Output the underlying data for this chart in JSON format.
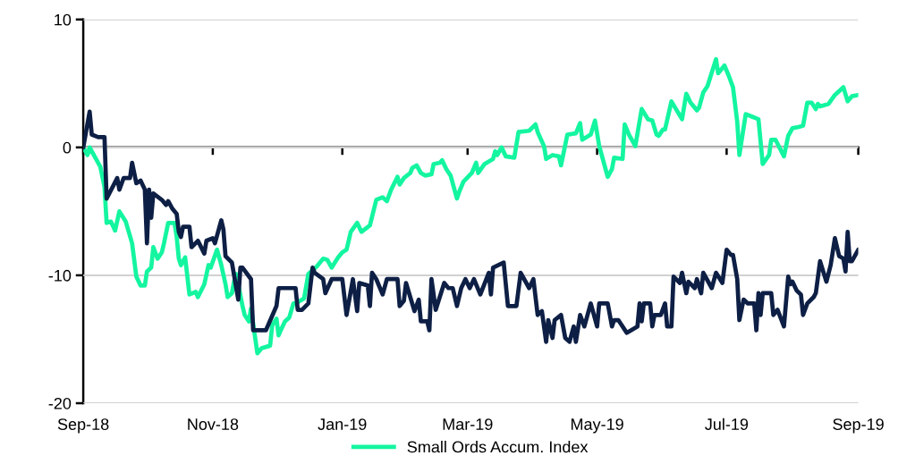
{
  "chart_data": {
    "type": "line",
    "xlim": [
      "2018-09-01",
      "2019-09-01"
    ],
    "ylim": [
      -20,
      10
    ],
    "yticks": [
      -20,
      -10,
      0,
      10
    ],
    "xticks": [
      {
        "value": "2018-09-01",
        "label": "Sep-18"
      },
      {
        "value": "2018-11-01",
        "label": "Nov-18"
      },
      {
        "value": "2019-01-01",
        "label": "Jan-19"
      },
      {
        "value": "2019-03-01",
        "label": "Mar-19"
      },
      {
        "value": "2019-05-01",
        "label": "May-19"
      },
      {
        "value": "2019-07-01",
        "label": "Jul-19"
      },
      {
        "value": "2019-09-01",
        "label": "Sep-19"
      }
    ],
    "grid": "y",
    "legend": "bottom",
    "marker": "none",
    "line_style": "solid",
    "series": [
      {
        "name": "Small Ords Accum. Index",
        "color": "#14f5a0",
        "x": [
          "2018-09-01",
          "2018-09-03",
          "2018-09-04",
          "2018-09-09",
          "2018-09-11",
          "2018-09-12",
          "2018-09-14",
          "2018-09-16",
          "2018-09-18",
          "2018-09-21",
          "2018-09-24",
          "2018-09-26",
          "2018-09-28",
          "2018-09-30",
          "2018-10-01",
          "2018-10-03",
          "2018-10-04",
          "2018-10-06",
          "2018-10-08",
          "2018-10-09",
          "2018-10-11",
          "2018-10-14",
          "2018-10-15",
          "2018-10-16",
          "2018-10-17",
          "2018-10-19",
          "2018-10-21",
          "2018-10-24",
          "2018-10-25",
          "2018-10-28",
          "2018-10-30",
          "2018-10-31",
          "2018-11-03",
          "2018-11-05",
          "2018-11-07",
          "2018-11-08",
          "2018-11-10",
          "2018-11-11",
          "2018-11-12",
          "2018-11-15",
          "2018-11-16",
          "2018-11-18",
          "2018-11-19",
          "2018-11-22",
          "2018-11-24",
          "2018-11-28",
          "2018-11-29",
          "2018-12-01",
          "2018-12-02",
          "2018-12-03",
          "2018-12-05",
          "2018-12-07",
          "2018-12-09",
          "2018-12-10",
          "2018-12-14",
          "2018-12-16",
          "2018-12-18",
          "2018-12-20",
          "2018-12-23",
          "2018-12-25",
          "2018-12-27",
          "2018-12-30",
          "2019-01-01",
          "2019-01-03",
          "2019-01-05",
          "2019-01-08",
          "2019-01-10",
          "2019-01-14",
          "2019-01-17",
          "2019-01-20",
          "2019-01-22",
          "2019-01-24",
          "2019-01-27",
          "2019-01-28",
          "2019-01-30",
          "2019-02-02",
          "2019-02-03",
          "2019-02-05",
          "2019-02-07",
          "2019-02-09",
          "2019-02-12",
          "2019-02-13",
          "2019-02-16",
          "2019-02-17",
          "2019-02-19",
          "2019-02-21",
          "2019-02-24",
          "2019-02-25",
          "2019-02-27",
          "2019-03-03",
          "2019-03-05",
          "2019-03-06",
          "2019-03-09",
          "2019-03-13",
          "2019-03-14",
          "2019-03-15",
          "2019-03-17",
          "2019-03-19",
          "2019-03-23",
          "2019-03-25",
          "2019-03-30",
          "2019-04-02",
          "2019-04-03",
          "2019-04-06",
          "2019-04-07",
          "2019-04-10",
          "2019-04-13",
          "2019-04-14",
          "2019-04-17",
          "2019-04-21",
          "2019-04-23",
          "2019-04-24",
          "2019-04-28",
          "2019-04-30",
          "2019-05-02",
          "2019-05-06",
          "2019-05-08",
          "2019-05-09",
          "2019-05-13",
          "2019-05-14",
          "2019-05-16",
          "2019-05-19",
          "2019-05-22",
          "2019-05-25",
          "2019-05-27",
          "2019-05-29",
          "2019-05-30",
          "2019-06-01",
          "2019-06-02",
          "2019-06-05",
          "2019-06-10",
          "2019-06-12",
          "2019-06-14",
          "2019-06-17",
          "2019-06-18",
          "2019-06-20",
          "2019-06-22",
          "2019-06-26",
          "2019-06-27",
          "2019-06-30",
          "2019-07-02",
          "2019-07-04",
          "2019-07-06",
          "2019-07-07",
          "2019-07-10",
          "2019-07-13",
          "2019-07-16",
          "2019-07-18",
          "2019-07-21",
          "2019-07-22",
          "2019-07-24",
          "2019-07-28",
          "2019-07-30",
          "2019-08-01",
          "2019-08-04",
          "2019-08-06",
          "2019-08-08",
          "2019-08-10",
          "2019-08-12",
          "2019-08-13",
          "2019-08-14",
          "2019-08-18",
          "2019-08-21",
          "2019-08-25",
          "2019-08-27",
          "2019-08-29",
          "2019-09-01"
        ],
        "values": [
          0,
          -0.6,
          0,
          -1.5,
          -3.1,
          -5.9,
          -5.8,
          -6.5,
          -5.0,
          -5.8,
          -7.5,
          -10.1,
          -10.8,
          -10.8,
          -9.7,
          -9.4,
          -7.8,
          -8.7,
          -8.2,
          -7.5,
          -5.9,
          -5.9,
          -7.0,
          -8.7,
          -9.2,
          -8.6,
          -11.5,
          -11.3,
          -11.7,
          -10.7,
          -9.2,
          -9.4,
          -8.0,
          -9.2,
          -10.7,
          -11.7,
          -11.4,
          -10.5,
          -9.9,
          -12.4,
          -13.1,
          -13.6,
          -12.6,
          -16.1,
          -15.7,
          -15.5,
          -13.9,
          -13.4,
          -14.7,
          -14.3,
          -13.6,
          -13.3,
          -12.2,
          -12.2,
          -11.8,
          -9.9,
          -9.6,
          -9.3,
          -8.7,
          -8.8,
          -9.4,
          -8.6,
          -8.2,
          -8.0,
          -6.6,
          -5.9,
          -6.6,
          -6.1,
          -4.1,
          -3.9,
          -4.2,
          -3.3,
          -2.3,
          -2.9,
          -2.4,
          -2.0,
          -1.6,
          -1.4,
          -2.0,
          -2.2,
          -2.1,
          -1.3,
          -1.2,
          -1.0,
          -1.7,
          -2.2,
          -4.0,
          -3.5,
          -2.7,
          -2.0,
          -1.2,
          -2.0,
          -1.3,
          -0.9,
          -0.3,
          -0.6,
          0,
          -0.7,
          -0.8,
          1.2,
          1.3,
          1.8,
          1.2,
          0.1,
          -0.9,
          -0.6,
          -0.7,
          -1.4,
          1.0,
          1.1,
          1.9,
          0.6,
          1.0,
          2.1,
          0.1,
          -2.3,
          -1.7,
          -0.8,
          -0.9,
          1.8,
          1.0,
          0.1,
          3.0,
          2.2,
          2.1,
          1.0,
          0.9,
          1.4,
          1.4,
          3.6,
          2.2,
          4.2,
          3.5,
          2.9,
          3.1,
          4.3,
          4.8,
          6.9,
          5.8,
          6.4,
          5.6,
          4.7,
          2.0,
          -0.6,
          2.6,
          2.4,
          2.2,
          -1.3,
          -0.6,
          0.6,
          0.6,
          -0.7,
          0.9,
          1.5,
          1.6,
          1.7,
          3.5,
          3.5,
          3.0,
          3.4,
          3.2,
          3.4,
          4.1,
          4.7,
          3.6,
          4.0,
          4.1
        ]
      },
      {
        "color": "#0e1f45",
        "x": [
          "2018-09-01",
          "2018-09-04",
          "2018-09-05",
          "2018-09-08",
          "2018-09-11",
          "2018-09-12",
          "2018-09-17",
          "2018-09-18",
          "2018-09-20",
          "2018-09-23",
          "2018-09-24",
          "2018-09-26",
          "2018-09-28",
          "2018-09-30",
          "2018-10-01",
          "2018-10-02",
          "2018-10-03",
          "2018-10-04",
          "2018-10-08",
          "2018-10-10",
          "2018-10-11",
          "2018-10-13",
          "2018-10-15",
          "2018-10-16",
          "2018-10-17",
          "2018-10-18",
          "2018-10-21",
          "2018-10-22",
          "2018-10-25",
          "2018-10-28",
          "2018-10-29",
          "2018-11-01",
          "2018-11-02",
          "2018-11-05",
          "2018-11-06",
          "2018-11-07",
          "2018-11-10",
          "2018-11-13",
          "2018-11-14",
          "2018-11-15",
          "2018-11-19",
          "2018-11-20",
          "2018-11-26",
          "2018-12-01",
          "2018-12-02",
          "2018-12-10",
          "2018-12-11",
          "2018-12-13",
          "2018-12-16",
          "2018-12-18",
          "2018-12-19",
          "2018-12-23",
          "2018-12-24",
          "2018-12-27",
          "2019-01-01",
          "2019-01-03",
          "2019-01-06",
          "2019-01-08",
          "2019-01-09",
          "2019-01-13",
          "2019-01-14",
          "2019-01-15",
          "2019-01-17",
          "2019-01-20",
          "2019-01-22",
          "2019-01-27",
          "2019-01-28",
          "2019-01-30",
          "2019-01-31",
          "2019-02-04",
          "2019-02-06",
          "2019-02-07",
          "2019-02-10",
          "2019-02-11",
          "2019-02-12",
          "2019-02-14",
          "2019-02-18",
          "2019-02-20",
          "2019-02-22",
          "2019-02-24",
          "2019-02-26",
          "2019-02-28",
          "2019-03-02",
          "2019-03-04",
          "2019-03-07",
          "2019-03-11",
          "2019-03-12",
          "2019-03-13",
          "2019-03-18",
          "2019-03-20",
          "2019-03-24",
          "2019-03-26",
          "2019-03-30",
          "2019-04-01",
          "2019-04-03",
          "2019-04-05",
          "2019-04-07",
          "2019-04-08",
          "2019-04-10",
          "2019-04-11",
          "2019-04-14",
          "2019-04-16",
          "2019-04-18",
          "2019-04-20",
          "2019-04-21",
          "2019-04-23",
          "2019-04-25",
          "2019-04-28",
          "2019-05-01",
          "2019-05-02",
          "2019-05-06",
          "2019-05-08",
          "2019-05-09",
          "2019-05-11",
          "2019-05-15",
          "2019-05-20",
          "2019-05-21",
          "2019-05-22",
          "2019-05-23",
          "2019-05-26",
          "2019-05-27",
          "2019-05-28",
          "2019-05-31",
          "2019-06-02",
          "2019-06-03",
          "2019-06-05",
          "2019-06-06",
          "2019-06-09",
          "2019-06-10",
          "2019-06-12",
          "2019-06-13",
          "2019-06-16",
          "2019-06-17",
          "2019-06-19",
          "2019-06-20",
          "2019-06-24",
          "2019-06-26",
          "2019-06-29",
          "2019-07-01",
          "2019-07-03",
          "2019-07-04",
          "2019-07-06",
          "2019-07-07",
          "2019-07-09",
          "2019-07-11",
          "2019-07-14",
          "2019-07-15",
          "2019-07-16",
          "2019-07-17",
          "2019-07-18",
          "2019-07-22",
          "2019-07-23",
          "2019-07-25",
          "2019-07-28",
          "2019-07-30",
          "2019-07-31",
          "2019-08-01",
          "2019-08-03",
          "2019-08-05",
          "2019-08-06",
          "2019-08-08",
          "2019-08-11",
          "2019-08-12",
          "2019-08-14",
          "2019-08-17",
          "2019-08-19",
          "2019-08-21",
          "2019-08-23",
          "2019-08-25",
          "2019-08-26",
          "2019-08-27",
          "2019-08-28",
          "2019-08-29",
          "2019-09-01"
        ],
        "values": [
          0,
          2.8,
          1.0,
          0.8,
          0.8,
          -4.0,
          -2.4,
          -3.3,
          -2.4,
          -2.4,
          -1.2,
          -2.8,
          -2.6,
          -3.3,
          -7.5,
          -3.3,
          -5.5,
          -3.6,
          -4.1,
          -4.5,
          -4.2,
          -4.8,
          -5.2,
          -6.6,
          -7.0,
          -6.2,
          -6.2,
          -7.8,
          -7.3,
          -8.3,
          -7.3,
          -7.1,
          -7.5,
          -5.7,
          -6.4,
          -8.5,
          -9.0,
          -11.9,
          -9.4,
          -9.4,
          -10.3,
          -14.3,
          -14.3,
          -12.4,
          -11.0,
          -11.0,
          -12.7,
          -12.7,
          -12.2,
          -9.4,
          -9.8,
          -10.3,
          -11.4,
          -10.3,
          -10.3,
          -13.1,
          -10.3,
          -12.8,
          -10.6,
          -10.8,
          -12.4,
          -9.8,
          -10.3,
          -11.5,
          -10.3,
          -10.3,
          -12.4,
          -12.0,
          -10.6,
          -12.8,
          -11.9,
          -13.6,
          -13.6,
          -14.3,
          -10.3,
          -12.7,
          -10.6,
          -11.0,
          -11.0,
          -12.4,
          -11.0,
          -10.3,
          -11.0,
          -10.3,
          -11.5,
          -9.8,
          -11.5,
          -9.4,
          -9.0,
          -12.4,
          -12.4,
          -9.8,
          -11.0,
          -10.3,
          -13.1,
          -12.8,
          -15.2,
          -13.5,
          -14.9,
          -13.5,
          -13.1,
          -14.9,
          -15.2,
          -14.0,
          -15.2,
          -13.1,
          -14.0,
          -12.2,
          -14.0,
          -12.2,
          -12.2,
          -14.0,
          -13.5,
          -13.5,
          -14.5,
          -14.0,
          -12.2,
          -13.6,
          -12.2,
          -12.2,
          -14.0,
          -13.1,
          -13.1,
          -12.2,
          -14.0,
          -14.0,
          -10.1,
          -10.6,
          -9.8,
          -11.4,
          -10.5,
          -11.0,
          -10.3,
          -11.4,
          -9.8,
          -11.0,
          -9.8,
          -10.6,
          -8.0,
          -8.4,
          -8.4,
          -10.3,
          -13.5,
          -11.9,
          -12.2,
          -12.2,
          -14.3,
          -11.4,
          -13.1,
          -11.4,
          -11.4,
          -13.1,
          -12.7,
          -14.0,
          -10.1,
          -10.7,
          -10.5,
          -11.2,
          -11.5,
          -13.1,
          -12.2,
          -11.7,
          -11.4,
          -8.9,
          -10.5,
          -9.2,
          -7.1,
          -8.5,
          -8.7,
          -9.7,
          -6.6,
          -8.9,
          -8.9,
          -8.0
        ]
      }
    ]
  }
}
